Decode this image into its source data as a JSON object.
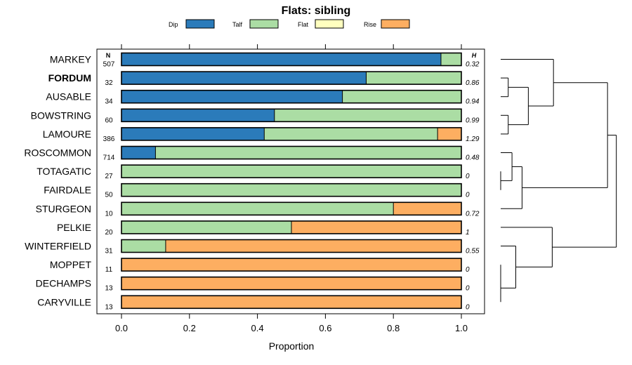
{
  "chart_data": {
    "type": "bar",
    "stacked": true,
    "orientation": "horizontal",
    "title": "Flats: sibling",
    "xlabel": "Proportion",
    "ylabel": "",
    "xlim": [
      0,
      1
    ],
    "xticks": [
      "0.0",
      "0.2",
      "0.4",
      "0.6",
      "0.8",
      "1.0"
    ],
    "n_header": "N",
    "h_header": "H",
    "legend_position": "top",
    "legend": [
      {
        "name": "Dip",
        "color": "#2b7bba"
      },
      {
        "name": "Talf",
        "color": "#abdda4"
      },
      {
        "name": "Flat",
        "color": "#ffffbf"
      },
      {
        "name": "Rise",
        "color": "#fdae61"
      }
    ],
    "categories": [
      {
        "name": "MARKEY",
        "n": "507",
        "h": "0.32",
        "bold": false,
        "values": [
          0.94,
          0.06,
          0,
          0
        ]
      },
      {
        "name": "FORDUM",
        "n": "32",
        "h": "0.86",
        "bold": true,
        "values": [
          0.72,
          0.28,
          0,
          0
        ]
      },
      {
        "name": "AUSABLE",
        "n": "34",
        "h": "0.94",
        "bold": false,
        "values": [
          0.65,
          0.35,
          0,
          0
        ]
      },
      {
        "name": "BOWSTRING",
        "n": "60",
        "h": "0.99",
        "bold": false,
        "values": [
          0.45,
          0.55,
          0,
          0
        ]
      },
      {
        "name": "LAMOURE",
        "n": "386",
        "h": "1.29",
        "bold": false,
        "values": [
          0.42,
          0.51,
          0,
          0.07
        ]
      },
      {
        "name": "ROSCOMMON",
        "n": "714",
        "h": "0.48",
        "bold": false,
        "values": [
          0.1,
          0.9,
          0,
          0
        ]
      },
      {
        "name": "TOTAGATIC",
        "n": "27",
        "h": "0",
        "bold": false,
        "values": [
          0,
          1.0,
          0,
          0
        ]
      },
      {
        "name": "FAIRDALE",
        "n": "50",
        "h": "0",
        "bold": false,
        "values": [
          0,
          1.0,
          0,
          0
        ]
      },
      {
        "name": "STURGEON",
        "n": "10",
        "h": "0.72",
        "bold": false,
        "values": [
          0,
          0.8,
          0,
          0.2
        ]
      },
      {
        "name": "PELKIE",
        "n": "20",
        "h": "1",
        "bold": false,
        "values": [
          0,
          0.5,
          0,
          0.5
        ]
      },
      {
        "name": "WINTERFIELD",
        "n": "31",
        "h": "0.55",
        "bold": false,
        "values": [
          0,
          0.13,
          0,
          0.87
        ]
      },
      {
        "name": "MOPPET",
        "n": "11",
        "h": "0",
        "bold": false,
        "values": [
          0,
          0,
          0,
          1.0
        ]
      },
      {
        "name": "DECHAMPS",
        "n": "13",
        "h": "0",
        "bold": false,
        "values": [
          0,
          0,
          0,
          1.0
        ]
      },
      {
        "name": "CARYVILLE",
        "n": "13",
        "h": "0",
        "bold": false,
        "values": [
          0,
          0,
          0,
          1.0
        ]
      }
    ],
    "dendrogram": {
      "leaves": [
        "MARKEY",
        "FORDUM",
        "AUSABLE",
        "BOWSTRING",
        "LAMOURE",
        "ROSCOMMON",
        "TOTAGATIC",
        "FAIRDALE",
        "STURGEON",
        "PELKIE",
        "WINTERFIELD",
        "MOPPET",
        "DECHAMPS",
        "CARYVILLE"
      ],
      "merges": [
        {
          "a": "FORDUM",
          "b": "AUSABLE",
          "height": 0.06
        },
        {
          "a": "BOWSTRING",
          "b": "LAMOURE",
          "height": 0.06
        },
        {
          "a": 1,
          "b": 2,
          "height": 0.22
        },
        {
          "a": "MARKEY",
          "b": 3,
          "height": 0.42
        },
        {
          "a": "TOTAGATIC",
          "b": "FAIRDALE",
          "height": 0.0
        },
        {
          "a": "ROSCOMMON",
          "b": 5,
          "height": 0.09
        },
        {
          "a": 6,
          "b": "STURGEON",
          "height": 0.17
        },
        {
          "a": 4,
          "b": 7,
          "height": 0.85
        },
        {
          "a": "MOPPET",
          "b": "DECHAMPS",
          "height": 0.0
        },
        {
          "a": 9,
          "b": "CARYVILLE",
          "height": 0.0
        },
        {
          "a": "WINTERFIELD",
          "b": 10,
          "height": 0.12
        },
        {
          "a": "PELKIE",
          "b": 11,
          "height": 0.41
        },
        {
          "a": 8,
          "b": 12,
          "height": 0.92
        }
      ]
    }
  }
}
